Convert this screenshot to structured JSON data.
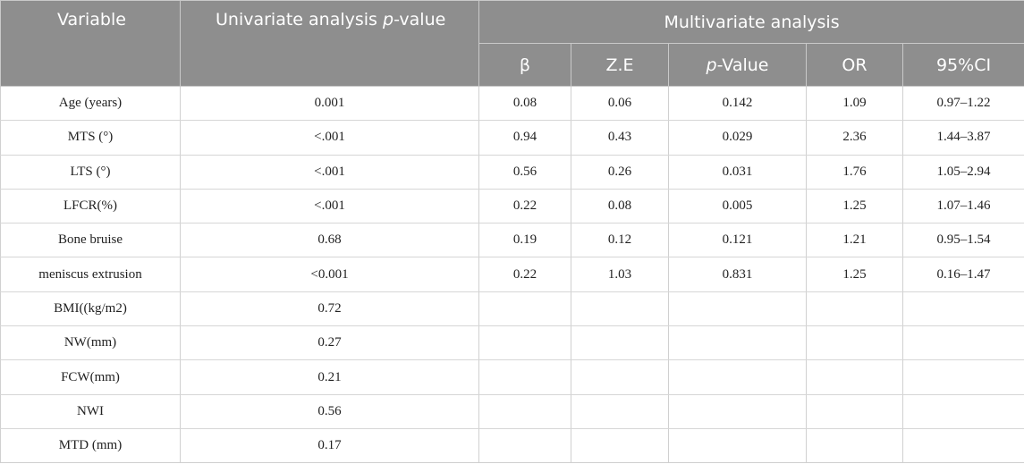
{
  "header": {
    "variable": "Variable",
    "univariate_prefix": "Univariate analysis ",
    "univariate_italic": "p",
    "univariate_suffix": "-value",
    "multivariate": "Multivariate analysis",
    "beta": "β",
    "ze": "Z.E",
    "pvalue_italic": "p",
    "pvalue_suffix": "-Value",
    "or": "OR",
    "ci": "95%CI"
  },
  "rows": [
    {
      "variable": "Age (years)",
      "univariate": "0.001",
      "beta": "0.08",
      "ze": "0.06",
      "p": "0.142",
      "or": "1.09",
      "ci": "0.97–1.22"
    },
    {
      "variable": "MTS (°)",
      "univariate": "<.001",
      "beta": "0.94",
      "ze": "0.43",
      "p": "0.029",
      "or": "2.36",
      "ci": "1.44–3.87"
    },
    {
      "variable": "LTS (°)",
      "univariate": "<.001",
      "beta": "0.56",
      "ze": "0.26",
      "p": "0.031",
      "or": "1.76",
      "ci": "1.05–2.94"
    },
    {
      "variable": "LFCR(%)",
      "univariate": "<.001",
      "beta": "0.22",
      "ze": "0.08",
      "p": "0.005",
      "or": "1.25",
      "ci": "1.07–1.46"
    },
    {
      "variable": "Bone bruise",
      "univariate": "0.68",
      "beta": "0.19",
      "ze": "0.12",
      "p": "0.121",
      "or": "1.21",
      "ci": "0.95–1.54"
    },
    {
      "variable": "meniscus extrusion",
      "univariate": "<0.001",
      "beta": "0.22",
      "ze": "1.03",
      "p": "0.831",
      "or": "1.25",
      "ci": "0.16–1.47"
    },
    {
      "variable": "BMI((kg/m2)",
      "univariate": "0.72",
      "beta": "",
      "ze": "",
      "p": "",
      "or": "",
      "ci": ""
    },
    {
      "variable": "NW(mm)",
      "univariate": "0.27",
      "beta": "",
      "ze": "",
      "p": "",
      "or": "",
      "ci": ""
    },
    {
      "variable": "FCW(mm)",
      "univariate": "0.21",
      "beta": "",
      "ze": "",
      "p": "",
      "or": "",
      "ci": ""
    },
    {
      "variable": "NWI",
      "univariate": "0.56",
      "beta": "",
      "ze": "",
      "p": "",
      "or": "",
      "ci": ""
    },
    {
      "variable": "MTD (mm)",
      "univariate": "0.17",
      "beta": "",
      "ze": "",
      "p": "",
      "or": "",
      "ci": ""
    }
  ]
}
